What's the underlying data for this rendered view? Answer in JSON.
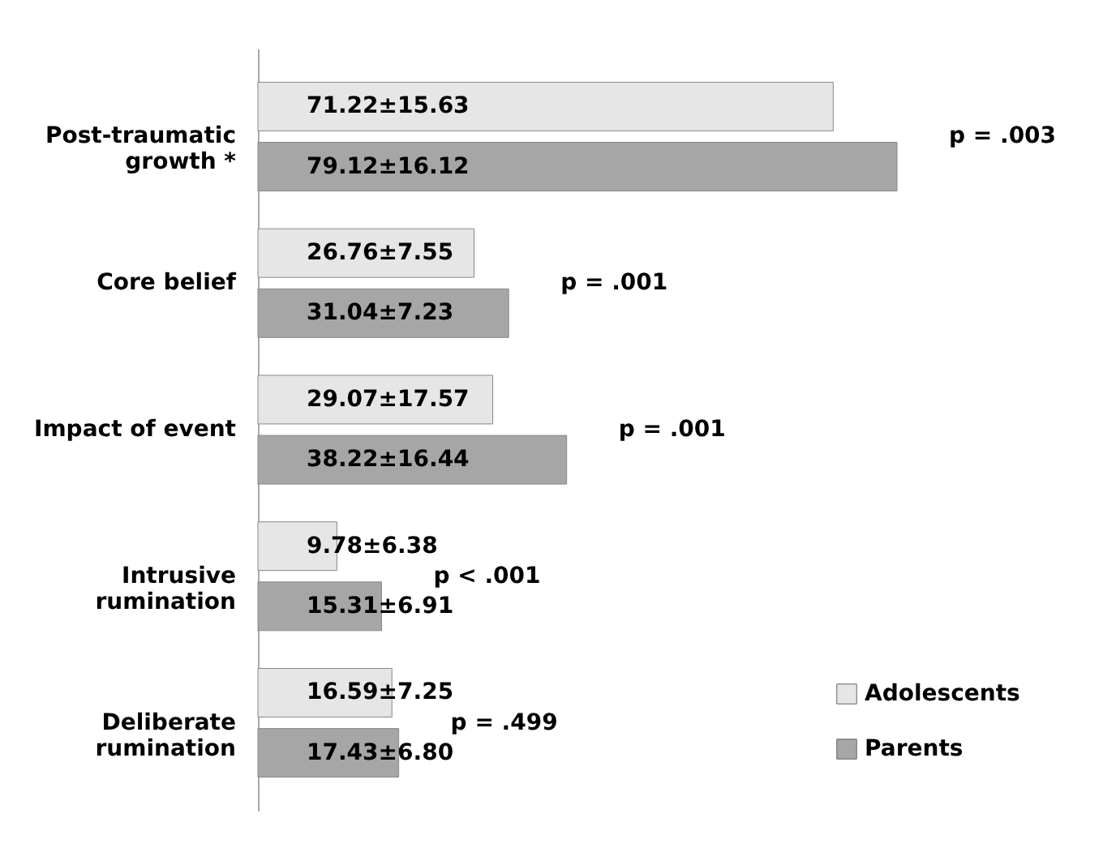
{
  "chart_data": {
    "type": "bar",
    "orientation": "horizontal",
    "categories": [
      "Post-traumatic growth *",
      "Core belief",
      "Impact of event",
      "Intrusive rumination",
      "Deliberate rumination"
    ],
    "series": [
      {
        "name": "Adolescents",
        "color": "#e6e6e6",
        "values": [
          71.22,
          26.76,
          29.07,
          9.78,
          16.59
        ],
        "value_labels": [
          "71.22±15.63",
          "26.76±7.55",
          "29.07±17.57",
          "9.78±6.38",
          "16.59±7.25"
        ]
      },
      {
        "name": "Parents",
        "color": "#a6a6a6",
        "values": [
          79.12,
          31.04,
          38.22,
          15.31,
          17.43
        ],
        "value_labels": [
          "79.12±16.12",
          "31.04±7.23",
          "38.22±16.44",
          "15.31±6.91",
          "17.43±6.80"
        ]
      }
    ],
    "annotations": [
      "p = .003",
      "p = .001",
      "p = .001",
      "p < .001",
      "p = .499"
    ],
    "legend": "bottom right"
  }
}
